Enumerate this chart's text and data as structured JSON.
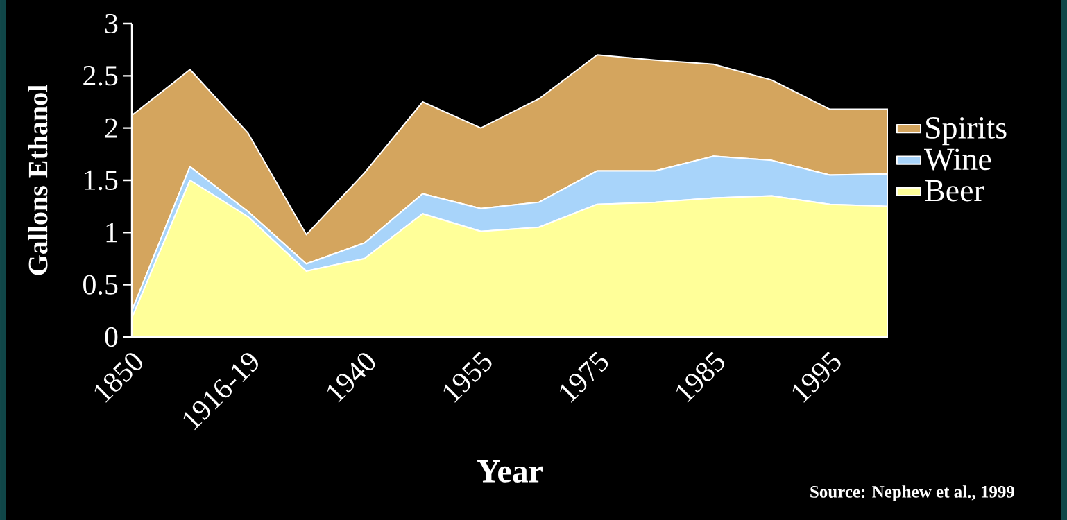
{
  "chart_data": {
    "type": "area",
    "stacked": true,
    "xlabel": "Year",
    "ylabel": "Gallons Ethanol",
    "categories": [
      "1850",
      null,
      "1916-19",
      null,
      "1940",
      null,
      "1955",
      null,
      "1975",
      null,
      "1985",
      null,
      "1995",
      null
    ],
    "series": [
      {
        "name": "Beer",
        "color": "#ffff99",
        "values": [
          0.18,
          1.5,
          1.15,
          0.63,
          0.75,
          1.18,
          1.01,
          1.05,
          1.27,
          1.29,
          1.33,
          1.35,
          1.27,
          1.25
        ]
      },
      {
        "name": "Wine",
        "color": "#a8d4fa",
        "values": [
          0.07,
          0.13,
          0.05,
          0.07,
          0.15,
          0.19,
          0.22,
          0.24,
          0.32,
          0.3,
          0.4,
          0.34,
          0.28,
          0.31
        ]
      },
      {
        "name": "Spirits",
        "color": "#d4a55e",
        "values": [
          1.87,
          0.93,
          0.75,
          0.28,
          0.67,
          0.88,
          0.77,
          0.99,
          1.11,
          1.06,
          0.88,
          0.77,
          0.63,
          0.62
        ]
      }
    ],
    "ylim": [
      0,
      3
    ],
    "yticks": [
      0,
      0.5,
      1,
      1.5,
      2,
      2.5,
      3
    ],
    "legend": "right",
    "annotations": [
      "Source: Nephew et al., 1999"
    ]
  }
}
